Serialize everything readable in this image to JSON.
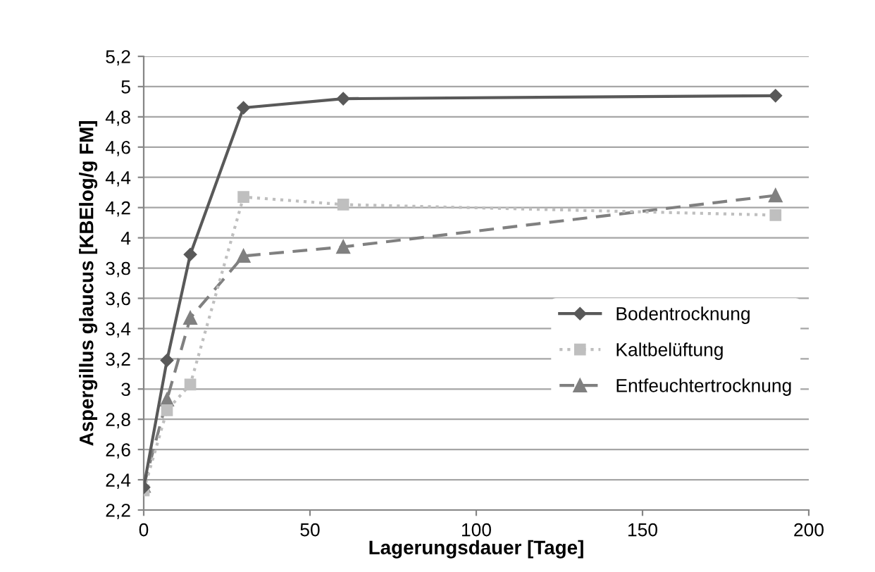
{
  "chart_data": {
    "type": "line",
    "xlabel": "Lagerungsdauer [Tage]",
    "ylabel": "Aspergillus glaucus [KBElog/g FM]",
    "series": [
      {
        "name": "Bodentrocknung",
        "color": "#595959",
        "marker": "diamond",
        "line_style": "solid",
        "x": [
          0,
          7,
          14,
          30,
          60,
          190
        ],
        "values": [
          2.35,
          3.19,
          3.89,
          4.86,
          4.92,
          4.94
        ]
      },
      {
        "name": "Kaltbelüftung",
        "color": "#bfbfbf",
        "marker": "square",
        "line_style": "dotted",
        "x": [
          0,
          7,
          14,
          30,
          60,
          190
        ],
        "values": [
          2.33,
          2.86,
          3.03,
          4.27,
          4.22,
          4.15
        ]
      },
      {
        "name": "Entfeuchtertrocknung",
        "color": "#808080",
        "marker": "triangle",
        "line_style": "dashed",
        "x": [
          0,
          7,
          14,
          30,
          60,
          190
        ],
        "values": [
          2.36,
          2.93,
          3.47,
          3.88,
          3.94,
          4.28
        ]
      }
    ],
    "xlim": [
      0,
      200
    ],
    "xticks": [
      0,
      50,
      100,
      150,
      200
    ],
    "ylim": [
      2.2,
      5.2
    ],
    "yticks": [
      {
        "value": 2.2,
        "label": "2,2"
      },
      {
        "value": 2.4,
        "label": "2,4"
      },
      {
        "value": 2.6,
        "label": "2,6"
      },
      {
        "value": 2.8,
        "label": "2,8"
      },
      {
        "value": 3,
        "label": "3"
      },
      {
        "value": 3.2,
        "label": "3,2"
      },
      {
        "value": 3.4,
        "label": "3,4"
      },
      {
        "value": 3.6,
        "label": "3,6"
      },
      {
        "value": 3.8,
        "label": "3,8"
      },
      {
        "value": 4,
        "label": "4"
      },
      {
        "value": 4.2,
        "label": "4,2"
      },
      {
        "value": 4.4,
        "label": "4,4"
      },
      {
        "value": 4.6,
        "label": "4,6"
      },
      {
        "value": 4.8,
        "label": "4,8"
      },
      {
        "value": 5,
        "label": "5"
      },
      {
        "value": 5.2,
        "label": "5,2"
      }
    ],
    "grid": "y",
    "legend": "right"
  }
}
